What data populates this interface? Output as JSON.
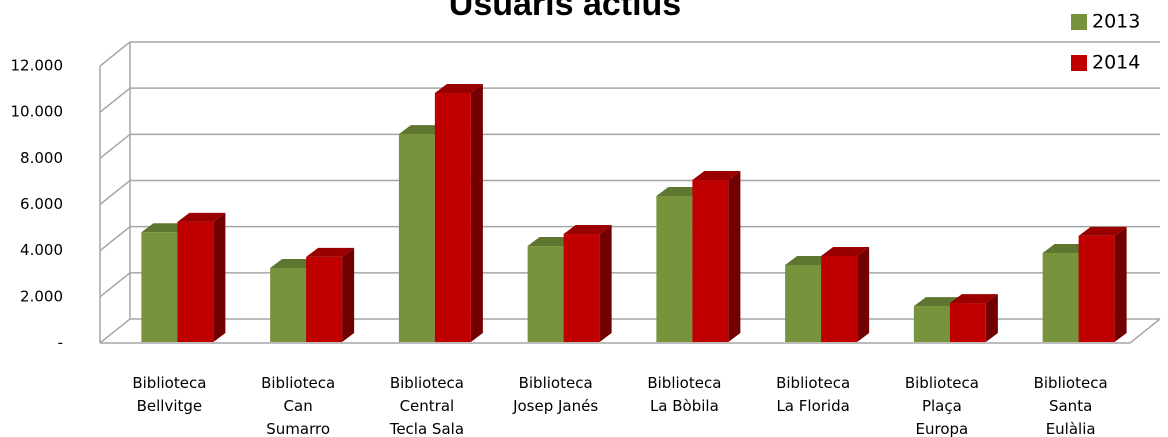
{
  "chart_data": {
    "type": "bar3d",
    "title": "Usuaris actius",
    "categories": [
      "Biblioteca\nBellvitge",
      "Biblioteca\nCan\nSumarro",
      "Biblioteca\nCentral\nTecla Sala",
      "Biblioteca\nJosep Janés",
      "Biblioteca\nLa Bòbila",
      "Biblioteca\nLa Florida",
      "Biblioteca\nPlaça\nEuropa",
      "Biblioteca\nSanta\nEulàlia"
    ],
    "series": [
      {
        "name": "2013",
        "color": "#77933c",
        "values": [
          4800,
          3250,
          9050,
          4200,
          6370,
          3380,
          1600,
          3900
        ]
      },
      {
        "name": "2014",
        "color": "#c00000",
        "values": [
          5250,
          3730,
          10830,
          4720,
          7060,
          3770,
          1730,
          4640
        ]
      }
    ],
    "ylim": [
      0,
      12000
    ],
    "yticks": [
      {
        "value": 0,
        "label": "-"
      },
      {
        "value": 2000,
        "label": "2.000"
      },
      {
        "value": 4000,
        "label": "4.000"
      },
      {
        "value": 6000,
        "label": "6.000"
      },
      {
        "value": 8000,
        "label": "8.000"
      },
      {
        "value": 10000,
        "label": "10.000"
      },
      {
        "value": 12000,
        "label": "12.000"
      }
    ],
    "grid": true,
    "legend": "top-right"
  }
}
